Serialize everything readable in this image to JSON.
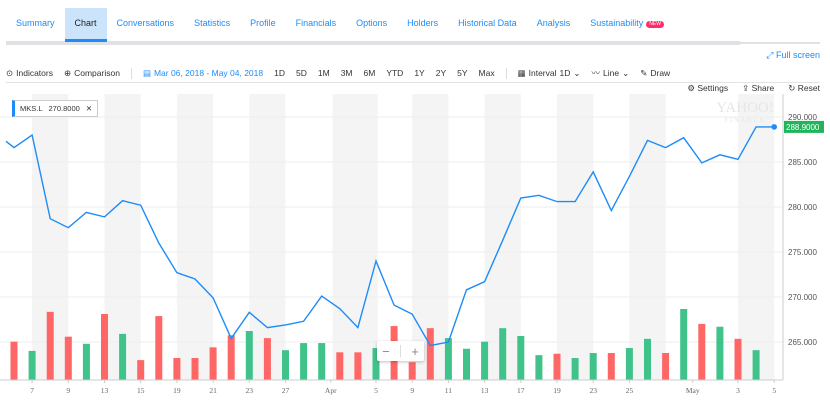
{
  "tabs": [
    {
      "label": "Summary"
    },
    {
      "label": "Chart",
      "active": true
    },
    {
      "label": "Conversations"
    },
    {
      "label": "Statistics"
    },
    {
      "label": "Profile"
    },
    {
      "label": "Financials"
    },
    {
      "label": "Options"
    },
    {
      "label": "Holders"
    },
    {
      "label": "Historical Data"
    },
    {
      "label": "Analysis"
    },
    {
      "label": "Sustainability",
      "badge": "NEW"
    }
  ],
  "full_screen": "Full screen",
  "toolbar": {
    "indicators": "Indicators",
    "comparison": "Comparison",
    "date_range": "Mar 06, 2018 - May 04, 2018",
    "ranges": [
      "1D",
      "5D",
      "1M",
      "3M",
      "6M",
      "YTD",
      "1Y",
      "2Y",
      "5Y",
      "Max"
    ],
    "interval_label": "Interval",
    "interval_value": "1D",
    "chart_type": "Line",
    "draw": "Draw"
  },
  "actions": {
    "settings": "Settings",
    "share": "Share",
    "reset": "Reset"
  },
  "legend": {
    "symbol": "MKS.L",
    "value": "270.8000"
  },
  "watermark": "YAHOO! FINANCE",
  "colors": {
    "line": "#1d8cf8",
    "up": "#3fc38a",
    "down": "#ff6666",
    "price_tag": "#21b45b"
  },
  "chart_data": {
    "type": "line",
    "symbol": "MKS.L",
    "last_price": "288.9000",
    "ylim": [
      262.5,
      292.5
    ],
    "y_ticks": [
      "290.000",
      "285.000",
      "280.000",
      "275.000",
      "270.000",
      "265.000"
    ],
    "y_tick_values": [
      290,
      285,
      280,
      275,
      270,
      265
    ],
    "x_ticks": [
      {
        "label": "7",
        "i": 1
      },
      {
        "label": "9",
        "i": 3
      },
      {
        "label": "13",
        "i": 5
      },
      {
        "label": "15",
        "i": 7
      },
      {
        "label": "19",
        "i": 9
      },
      {
        "label": "21",
        "i": 11
      },
      {
        "label": "23",
        "i": 13
      },
      {
        "label": "27",
        "i": 15
      },
      {
        "label": "Apr",
        "i": 17.5
      },
      {
        "label": "5",
        "i": 20
      },
      {
        "label": "9",
        "i": 22
      },
      {
        "label": "11",
        "i": 24
      },
      {
        "label": "13",
        "i": 26
      },
      {
        "label": "17",
        "i": 28
      },
      {
        "label": "19",
        "i": 30
      },
      {
        "label": "23",
        "i": 32
      },
      {
        "label": "25",
        "i": 34
      },
      {
        "label": "May",
        "i": 37.5
      },
      {
        "label": "3",
        "i": 40
      },
      {
        "label": "5",
        "i": 42
      }
    ],
    "close": [
      286.6,
      288.0,
      278.7,
      277.7,
      279.4,
      278.9,
      280.7,
      280.2,
      276.0,
      272.7,
      272.0,
      269.9,
      265.4,
      268.3,
      266.6,
      266.9,
      267.3,
      270.1,
      268.7,
      266.6,
      274.0,
      269.1,
      268.1,
      264.6,
      265.0,
      270.8,
      271.7,
      276.3,
      281.0,
      281.3,
      280.6,
      280.6,
      283.9,
      279.6,
      283.4,
      287.4,
      286.6,
      287.7,
      284.9,
      285.8,
      285.3,
      288.9,
      288.9
    ],
    "volume_relative": [
      54,
      41,
      96,
      61,
      51,
      93,
      65,
      28,
      90,
      31,
      31,
      46,
      63,
      69,
      59,
      42,
      52,
      52,
      39,
      39,
      45,
      76,
      25,
      73,
      59,
      44,
      54,
      73,
      62,
      35,
      37,
      31,
      38,
      38,
      45,
      58,
      38,
      100,
      79,
      75,
      58,
      42
    ],
    "volume_direction": [
      "down",
      "up",
      "down",
      "down",
      "up",
      "down",
      "up",
      "down",
      "down",
      "down",
      "down",
      "down",
      "down",
      "up",
      "down",
      "up",
      "up",
      "up",
      "down",
      "down",
      "up",
      "down",
      "down",
      "down",
      "up",
      "up",
      "up",
      "up",
      "up",
      "up",
      "down",
      "up",
      "up",
      "down",
      "up",
      "up",
      "down",
      "up",
      "down",
      "up",
      "down",
      "up"
    ]
  }
}
